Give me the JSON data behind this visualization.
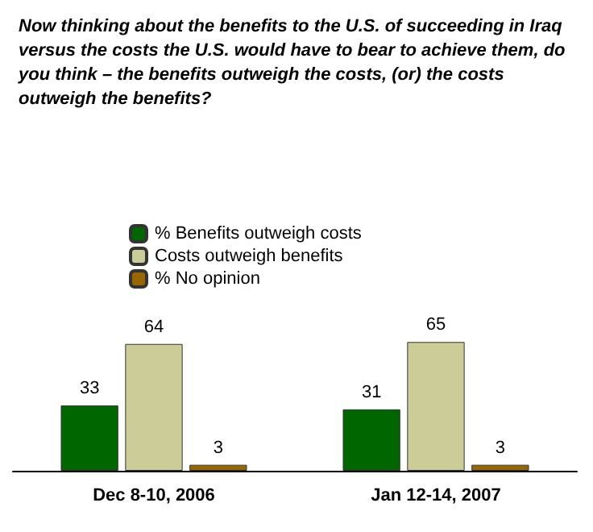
{
  "chart_data": {
    "type": "bar",
    "title": "Now thinking about the benefits to the U.S. of succeeding in Iraq versus the costs the U.S. would have to bear to achieve them, do you think – the benefits outweigh the costs, (or) the costs outweigh the benefits?",
    "categories": [
      "Dec 8-10, 2006",
      "Jan 12-14, 2007"
    ],
    "series": [
      {
        "name": "% Benefits outweigh costs",
        "color": "#006600",
        "values": [
          33,
          31
        ]
      },
      {
        "name": "Costs outweigh benefits",
        "color": "#cccc99",
        "values": [
          64,
          65
        ]
      },
      {
        "name": "% No opinion",
        "color": "#996600",
        "values": [
          3,
          3
        ]
      }
    ],
    "data_labels": true,
    "legend": "top left",
    "grid": false
  }
}
